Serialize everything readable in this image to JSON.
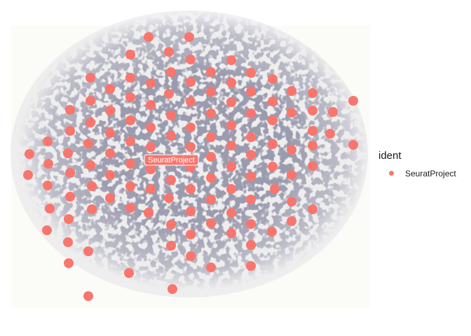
{
  "chart_data": {
    "type": "scatter",
    "title": "",
    "xlabel": "",
    "ylabel": "",
    "axes": "none",
    "grid": false,
    "background": "tissue image (H&E-like spatial slide, grayscale)",
    "legend": {
      "title": "ident",
      "position": "right",
      "entries": [
        {
          "name": "SeuratProject",
          "color": "#F8766D"
        }
      ]
    },
    "label": {
      "text": "SeuratProject",
      "x": 244,
      "y": 228
    },
    "series": [
      {
        "name": "SeuratProject",
        "color": "#F8766D",
        "points": [
          [
            212,
            53
          ],
          [
            270,
            53
          ],
          [
            186,
            78
          ],
          [
            241,
            74
          ],
          [
            272,
            85
          ],
          [
            330,
            86
          ],
          [
            186,
            111
          ],
          [
            244,
            103
          ],
          [
            301,
            103
          ],
          [
            358,
            104
          ],
          [
            389,
            113
          ],
          [
            129,
            111
          ],
          [
            215,
            119
          ],
          [
            272,
            117
          ],
          [
            330,
            118
          ],
          [
            416,
            130
          ],
          [
            157,
            127
          ],
          [
            186,
            139
          ],
          [
            241,
            134
          ],
          [
            301,
            131
          ],
          [
            358,
            131
          ],
          [
            446,
            133
          ],
          [
            100,
            157
          ],
          [
            129,
            144
          ],
          [
            215,
            150
          ],
          [
            272,
            145
          ],
          [
            330,
            146
          ],
          [
            389,
            145
          ],
          [
            504,
            144
          ],
          [
            157,
            158
          ],
          [
            244,
            165
          ],
          [
            301,
            162
          ],
          [
            358,
            162
          ],
          [
            416,
            161
          ],
          [
            446,
            158
          ],
          [
            475,
            160
          ],
          [
            129,
            175
          ],
          [
            186,
            172
          ],
          [
            215,
            182
          ],
          [
            272,
            182
          ],
          [
            330,
            179
          ],
          [
            389,
            172
          ],
          [
            100,
            187
          ],
          [
            157,
            190
          ],
          [
            244,
            194
          ],
          [
            301,
            196
          ],
          [
            358,
            196
          ],
          [
            446,
            187
          ],
          [
            471,
            191
          ],
          [
            68,
            202
          ],
          [
            126,
            205
          ],
          [
            186,
            202
          ],
          [
            215,
            210
          ],
          [
            272,
            210
          ],
          [
            330,
            208
          ],
          [
            389,
            206
          ],
          [
            416,
            214
          ],
          [
            504,
            207
          ],
          [
            42,
            220
          ],
          [
            97,
            219
          ],
          [
            157,
            219
          ],
          [
            244,
            228
          ],
          [
            301,
            224
          ],
          [
            358,
            221
          ],
          [
            446,
            208
          ],
          [
            69,
            234
          ],
          [
            129,
            236
          ],
          [
            186,
            234
          ],
          [
            215,
            242
          ],
          [
            272,
            239
          ],
          [
            330,
            238
          ],
          [
            389,
            238
          ],
          [
            446,
            237
          ],
          [
            40,
            250
          ],
          [
            100,
            247
          ],
          [
            157,
            250
          ],
          [
            244,
            257
          ],
          [
            301,
            254
          ],
          [
            358,
            252
          ],
          [
            416,
            250
          ],
          [
            68,
            265
          ],
          [
            131,
            266
          ],
          [
            186,
            266
          ],
          [
            215,
            270
          ],
          [
            272,
            270
          ],
          [
            330,
            270
          ],
          [
            392,
            270
          ],
          [
            100,
            281
          ],
          [
            157,
            283
          ],
          [
            241,
            283
          ],
          [
            301,
            285
          ],
          [
            358,
            285
          ],
          [
            416,
            288
          ],
          [
            71,
            298
          ],
          [
            131,
            299
          ],
          [
            186,
            297
          ],
          [
            212,
            304
          ],
          [
            272,
            302
          ],
          [
            330,
            304
          ],
          [
            446,
            299
          ],
          [
            98,
            313
          ],
          [
            244,
            321
          ],
          [
            301,
            319
          ],
          [
            358,
            320
          ],
          [
            416,
            316
          ],
          [
            67,
            329
          ],
          [
            272,
            335
          ],
          [
            330,
            333
          ],
          [
            388,
            331
          ],
          [
            97,
            346
          ],
          [
            244,
            351
          ],
          [
            358,
            350
          ],
          [
            126,
            359
          ],
          [
            272,
            366
          ],
          [
            98,
            376
          ],
          [
            301,
            382
          ],
          [
            358,
            380
          ],
          [
            184,
            390
          ],
          [
            246,
            413
          ],
          [
            126,
            423
          ]
        ]
      }
    ]
  }
}
